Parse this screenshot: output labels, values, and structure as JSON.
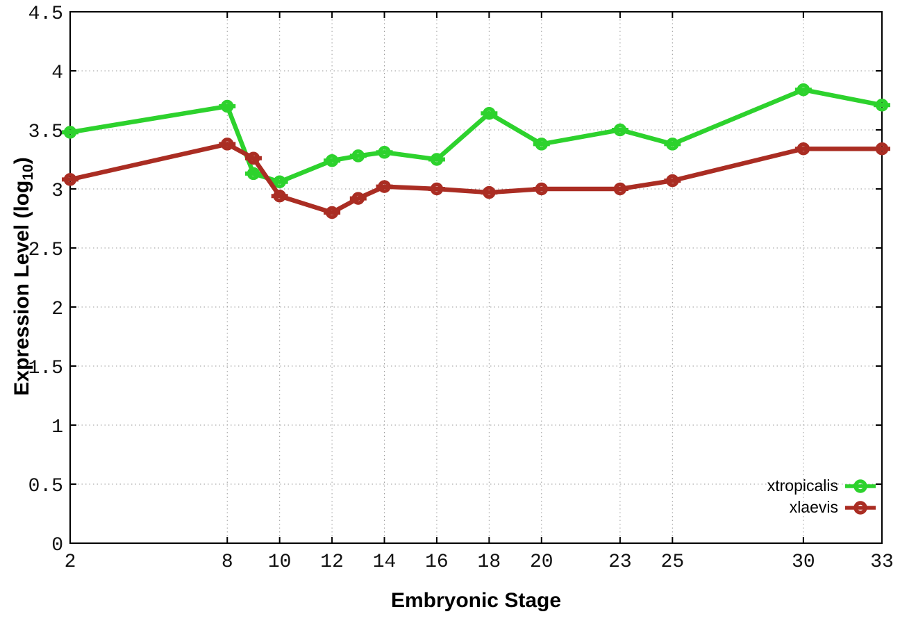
{
  "chart_data": {
    "type": "line",
    "title": "",
    "xlabel": "Embryonic Stage",
    "ylabel": {
      "prefix": "Expression Level (log",
      "sub": "10",
      "suffix": ")"
    },
    "x": [
      2,
      8,
      9,
      10,
      12,
      13,
      14,
      16,
      18,
      20,
      23,
      25,
      30,
      33
    ],
    "series": [
      {
        "name": "xtropicalis",
        "color": "#2dd22d",
        "marker": "open-circle-with-errorbar",
        "values": [
          3.48,
          3.7,
          3.13,
          3.06,
          3.24,
          3.28,
          3.31,
          3.25,
          3.64,
          3.38,
          3.5,
          3.38,
          3.84,
          3.71
        ]
      },
      {
        "name": "xlaevis",
        "color": "#aa2d23",
        "marker": "open-circle-with-errorbar",
        "values": [
          3.08,
          3.38,
          3.26,
          2.94,
          2.8,
          2.92,
          3.02,
          3.0,
          2.97,
          3.0,
          3.0,
          3.07,
          3.34,
          3.34
        ]
      }
    ],
    "xlim": [
      2,
      33
    ],
    "ylim": [
      0,
      4.5
    ],
    "x_ticks": {
      "values": [
        2,
        8,
        10,
        12,
        14,
        16,
        18,
        20,
        23,
        25,
        30,
        33
      ],
      "labels": [
        "2",
        "8",
        "10",
        "12",
        "14",
        "16",
        "18",
        "20",
        "23",
        "25",
        "30",
        "33"
      ]
    },
    "y_ticks": {
      "values": [
        0,
        0.5,
        1,
        1.5,
        2,
        2.5,
        3,
        3.5,
        4,
        4.5
      ],
      "labels": [
        "0",
        "0.5",
        "1",
        "1.5",
        "2",
        "2.5",
        "3",
        "3.5",
        "4",
        "4.5"
      ]
    },
    "grid": true,
    "legend_position": "bottom-right",
    "background": "#ffffff",
    "text_color": "#000000",
    "border_color": "#000000"
  }
}
